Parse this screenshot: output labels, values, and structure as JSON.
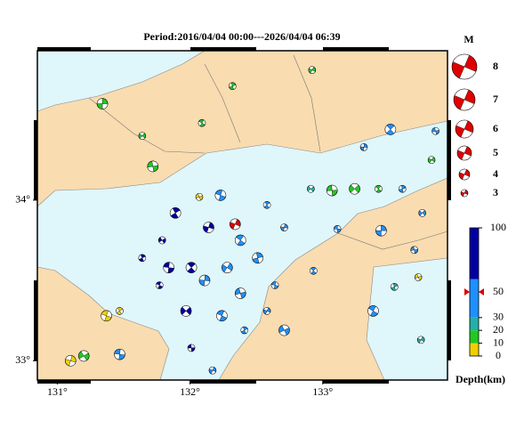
{
  "header": {
    "title": "Period:2016/04/04 00:00---2026/04/04 06:39"
  },
  "map": {
    "lon_range": [
      130.85,
      133.94
    ],
    "lat_range": [
      32.88,
      34.93
    ],
    "lon_ticks": [
      {
        "value": 131,
        "label": "131°"
      },
      {
        "value": 132,
        "label": "132°"
      },
      {
        "value": 133,
        "label": "133°"
      }
    ],
    "lat_ticks": [
      {
        "value": 33,
        "label": "33°"
      },
      {
        "value": 34,
        "label": "34°"
      }
    ]
  },
  "magnitude_legend": {
    "title": "M",
    "magnitudes": [
      8,
      7,
      6,
      5,
      4,
      3
    ]
  },
  "depth_scale": {
    "title": "Depth(km)",
    "range": [
      0,
      100
    ],
    "ticks": [
      100,
      50,
      30,
      20,
      10,
      0
    ],
    "bands": [
      {
        "from": 0,
        "to": 10,
        "color": "#f0d000"
      },
      {
        "from": 10,
        "to": 20,
        "color": "#22c822"
      },
      {
        "from": 20,
        "to": 30,
        "color": "#22b0a8"
      },
      {
        "from": 30,
        "to": 60,
        "color": "#1e90ff"
      },
      {
        "from": 60,
        "to": 100,
        "color": "#0000a0"
      }
    ]
  },
  "latest_event": {
    "lon": 132.34,
    "lat": 33.85,
    "mag": 4,
    "depth": 50,
    "color": "#e00000"
  },
  "events": [
    {
      "lon": 131.34,
      "lat": 34.6,
      "mag": 4,
      "depth": 15
    },
    {
      "lon": 131.64,
      "lat": 34.4,
      "mag": 3,
      "depth": 15
    },
    {
      "lon": 131.72,
      "lat": 34.21,
      "mag": 4,
      "depth": 15
    },
    {
      "lon": 132.09,
      "lat": 34.48,
      "mag": 3,
      "depth": 15
    },
    {
      "lon": 132.32,
      "lat": 34.71,
      "mag": 3,
      "depth": 15
    },
    {
      "lon": 132.92,
      "lat": 34.81,
      "mag": 3,
      "depth": 12
    },
    {
      "lon": 132.07,
      "lat": 34.02,
      "mag": 3,
      "depth": 5
    },
    {
      "lon": 132.23,
      "lat": 34.03,
      "mag": 4,
      "depth": 40
    },
    {
      "lon": 131.89,
      "lat": 33.92,
      "mag": 4,
      "depth": 70
    },
    {
      "lon": 132.14,
      "lat": 33.83,
      "mag": 4,
      "depth": 65
    },
    {
      "lon": 131.79,
      "lat": 33.75,
      "mag": 3,
      "depth": 70
    },
    {
      "lon": 131.84,
      "lat": 33.58,
      "mag": 4,
      "depth": 65
    },
    {
      "lon": 132.01,
      "lat": 33.58,
      "mag": 4,
      "depth": 62
    },
    {
      "lon": 132.11,
      "lat": 33.5,
      "mag": 4,
      "depth": 45
    },
    {
      "lon": 131.97,
      "lat": 33.31,
      "mag": 4,
      "depth": 70
    },
    {
      "lon": 132.01,
      "lat": 33.08,
      "mag": 3,
      "depth": 70
    },
    {
      "lon": 132.38,
      "lat": 33.75,
      "mag": 4,
      "depth": 40
    },
    {
      "lon": 132.51,
      "lat": 33.64,
      "mag": 4,
      "depth": 40
    },
    {
      "lon": 132.28,
      "lat": 33.58,
      "mag": 4,
      "depth": 40
    },
    {
      "lon": 132.38,
      "lat": 33.42,
      "mag": 4,
      "depth": 40
    },
    {
      "lon": 132.24,
      "lat": 33.28,
      "mag": 4,
      "depth": 40
    },
    {
      "lon": 132.41,
      "lat": 33.19,
      "mag": 3,
      "depth": 40
    },
    {
      "lon": 132.58,
      "lat": 33.31,
      "mag": 3,
      "depth": 40
    },
    {
      "lon": 132.71,
      "lat": 33.19,
      "mag": 4,
      "depth": 40
    },
    {
      "lon": 132.64,
      "lat": 33.47,
      "mag": 3,
      "depth": 40
    },
    {
      "lon": 132.58,
      "lat": 33.97,
      "mag": 3,
      "depth": 40
    },
    {
      "lon": 132.71,
      "lat": 33.83,
      "mag": 3,
      "depth": 40
    },
    {
      "lon": 132.91,
      "lat": 34.07,
      "mag": 3,
      "depth": 25
    },
    {
      "lon": 133.11,
      "lat": 33.82,
      "mag": 3,
      "depth": 40
    },
    {
      "lon": 132.93,
      "lat": 33.56,
      "mag": 3,
      "depth": 40
    },
    {
      "lon": 133.44,
      "lat": 33.81,
      "mag": 4,
      "depth": 40
    },
    {
      "lon": 133.75,
      "lat": 33.92,
      "mag": 3,
      "depth": 40
    },
    {
      "lon": 133.69,
      "lat": 33.69,
      "mag": 3,
      "depth": 40
    },
    {
      "lon": 133.38,
      "lat": 33.31,
      "mag": 4,
      "depth": 32
    },
    {
      "lon": 133.54,
      "lat": 33.46,
      "mag": 3,
      "depth": 28
    },
    {
      "lon": 133.74,
      "lat": 33.13,
      "mag": 3,
      "depth": 25
    },
    {
      "lon": 133.72,
      "lat": 33.52,
      "mag": 3,
      "depth": 8
    },
    {
      "lon": 131.37,
      "lat": 33.28,
      "mag": 4,
      "depth": 5
    },
    {
      "lon": 131.47,
      "lat": 33.31,
      "mag": 3,
      "depth": 5
    },
    {
      "lon": 131.1,
      "lat": 33.0,
      "mag": 4,
      "depth": 5
    },
    {
      "lon": 131.2,
      "lat": 33.03,
      "mag": 4,
      "depth": 15
    },
    {
      "lon": 131.47,
      "lat": 33.04,
      "mag": 4,
      "depth": 40
    },
    {
      "lon": 133.51,
      "lat": 34.44,
      "mag": 4,
      "depth": 40
    },
    {
      "lon": 133.31,
      "lat": 34.33,
      "mag": 3,
      "depth": 40
    },
    {
      "lon": 133.24,
      "lat": 34.07,
      "mag": 4,
      "depth": 15
    },
    {
      "lon": 133.07,
      "lat": 34.06,
      "mag": 4,
      "depth": 15
    },
    {
      "lon": 133.42,
      "lat": 34.07,
      "mag": 3,
      "depth": 15
    },
    {
      "lon": 133.6,
      "lat": 34.07,
      "mag": 3,
      "depth": 40
    },
    {
      "lon": 133.82,
      "lat": 34.25,
      "mag": 3,
      "depth": 15
    },
    {
      "lon": 133.85,
      "lat": 34.43,
      "mag": 3,
      "depth": 40
    },
    {
      "lon": 131.77,
      "lat": 33.47,
      "mag": 3,
      "depth": 70
    },
    {
      "lon": 131.64,
      "lat": 33.64,
      "mag": 3,
      "depth": 70
    },
    {
      "lon": 132.17,
      "lat": 32.94,
      "mag": 3,
      "depth": 40
    }
  ]
}
